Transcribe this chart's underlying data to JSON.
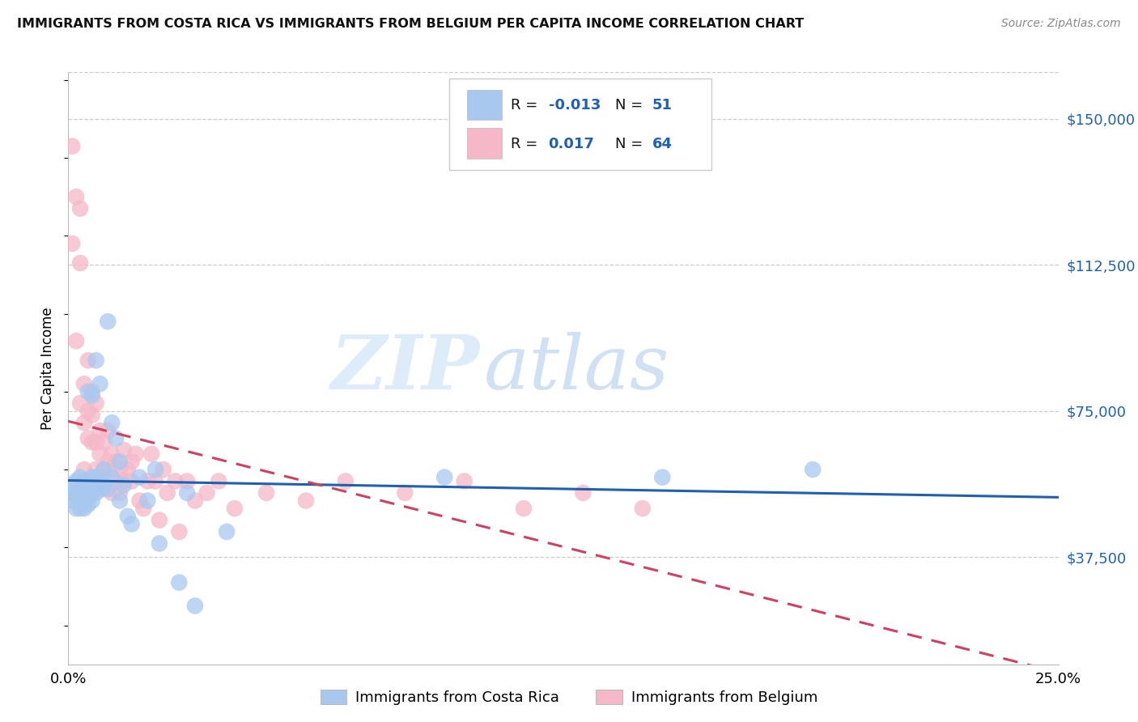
{
  "title": "IMMIGRANTS FROM COSTA RICA VS IMMIGRANTS FROM BELGIUM PER CAPITA INCOME CORRELATION CHART",
  "source": "Source: ZipAtlas.com",
  "ylabel": "Per Capita Income",
  "yticks": [
    37500,
    75000,
    112500,
    150000
  ],
  "ytick_labels": [
    "$37,500",
    "$75,000",
    "$112,500",
    "$150,000"
  ],
  "xmin": 0.0,
  "xmax": 0.25,
  "ymin": 10000,
  "ymax": 162000,
  "color_blue": "#A8C8F0",
  "color_pink": "#F5B8C8",
  "line_color_blue": "#2060B0",
  "line_color_pink": "#D04060",
  "watermark_zip": "ZIP",
  "watermark_atlas": "atlas",
  "series1_x": [
    0.001,
    0.001,
    0.001,
    0.002,
    0.002,
    0.002,
    0.003,
    0.003,
    0.003,
    0.003,
    0.004,
    0.004,
    0.004,
    0.004,
    0.005,
    0.005,
    0.005,
    0.005,
    0.005,
    0.006,
    0.006,
    0.006,
    0.006,
    0.007,
    0.007,
    0.007,
    0.008,
    0.008,
    0.009,
    0.009,
    0.01,
    0.01,
    0.011,
    0.011,
    0.012,
    0.013,
    0.013,
    0.014,
    0.015,
    0.016,
    0.018,
    0.02,
    0.022,
    0.023,
    0.028,
    0.03,
    0.032,
    0.04,
    0.095,
    0.15,
    0.188
  ],
  "series1_y": [
    52000,
    54000,
    56000,
    50000,
    53000,
    57000,
    50000,
    52000,
    55000,
    58000,
    50000,
    53000,
    55000,
    57000,
    51000,
    53000,
    55000,
    57000,
    80000,
    52000,
    55000,
    58000,
    79000,
    54000,
    58000,
    88000,
    55000,
    82000,
    56000,
    60000,
    55000,
    98000,
    58000,
    72000,
    68000,
    52000,
    62000,
    56000,
    48000,
    46000,
    58000,
    52000,
    60000,
    41000,
    31000,
    54000,
    25000,
    44000,
    58000,
    58000,
    60000
  ],
  "series2_x": [
    0.001,
    0.001,
    0.002,
    0.002,
    0.003,
    0.003,
    0.003,
    0.004,
    0.004,
    0.004,
    0.005,
    0.005,
    0.005,
    0.005,
    0.006,
    0.006,
    0.006,
    0.007,
    0.007,
    0.007,
    0.008,
    0.008,
    0.008,
    0.009,
    0.009,
    0.009,
    0.01,
    0.01,
    0.011,
    0.011,
    0.011,
    0.012,
    0.012,
    0.013,
    0.013,
    0.014,
    0.014,
    0.015,
    0.016,
    0.016,
    0.017,
    0.018,
    0.019,
    0.02,
    0.021,
    0.022,
    0.023,
    0.024,
    0.025,
    0.027,
    0.028,
    0.03,
    0.032,
    0.035,
    0.038,
    0.042,
    0.05,
    0.06,
    0.07,
    0.085,
    0.1,
    0.115,
    0.13,
    0.145
  ],
  "series2_y": [
    143000,
    118000,
    93000,
    130000,
    127000,
    113000,
    77000,
    82000,
    72000,
    60000,
    88000,
    75000,
    68000,
    57000,
    80000,
    74000,
    67000,
    77000,
    67000,
    60000,
    70000,
    64000,
    57000,
    67000,
    60000,
    55000,
    70000,
    62000,
    64000,
    60000,
    54000,
    62000,
    57000,
    60000,
    54000,
    65000,
    57000,
    60000,
    62000,
    57000,
    64000,
    52000,
    50000,
    57000,
    64000,
    57000,
    47000,
    60000,
    54000,
    57000,
    44000,
    57000,
    52000,
    54000,
    57000,
    50000,
    54000,
    52000,
    57000,
    54000,
    57000,
    50000,
    54000,
    50000
  ]
}
